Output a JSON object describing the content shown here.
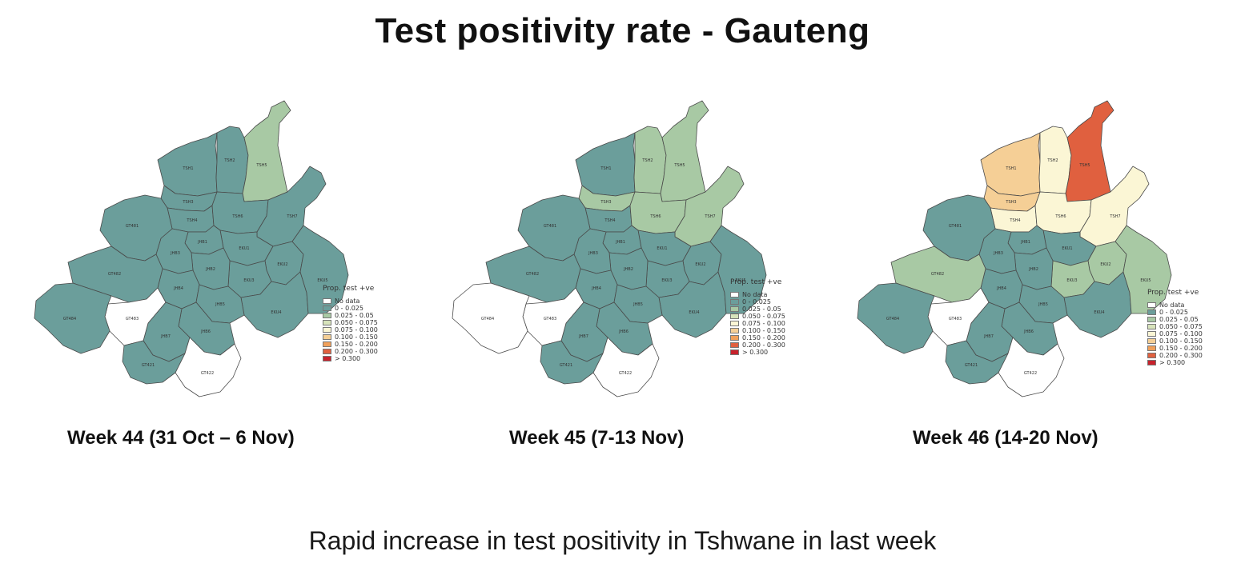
{
  "title": "Test positivity rate - Gauteng",
  "footer": "Rapid increase in test positivity in Tshwane in last week",
  "legend": {
    "title": "Prop. test +ve",
    "items": [
      {
        "label": "No data",
        "color": "#ffffff"
      },
      {
        "label": "0 - 0.025",
        "color": "#6b9e9b"
      },
      {
        "label": "0.025 - 0.05",
        "color": "#a8c9a4"
      },
      {
        "label": "0.050 - 0.075",
        "color": "#d7e3bb"
      },
      {
        "label": "0.075 - 0.100",
        "color": "#fbf6d5"
      },
      {
        "label": "0.100 - 0.150",
        "color": "#f5cf96"
      },
      {
        "label": "0.150 - 0.200",
        "color": "#f0a05a"
      },
      {
        "label": "0.200 - 0.300",
        "color": "#e0603f"
      },
      {
        "label": "> 0.300",
        "color": "#c7222c"
      }
    ]
  },
  "maps": [
    {
      "caption": "Week 44 (31 Oct – 6 Nov)",
      "labels": [
        "TSH1",
        "TSH2",
        "TSH3",
        "TSH4",
        "TSH5",
        "TSH6",
        "TSH7",
        "EKU1",
        "EKU2",
        "EKU3",
        "EKU4",
        "EKU5",
        "JHB1",
        "JHB2",
        "JHB3",
        "JHB4",
        "JHB5",
        "JHB6",
        "JHB7",
        "GT481",
        "GT482",
        "GT483",
        "GT484",
        "GT422",
        "GT421"
      ]
    },
    {
      "caption": "Week 45 (7-13 Nov)",
      "labels": [
        "TSH1",
        "TSH2",
        "TSH3",
        "TSH4",
        "TSH5",
        "TSH6",
        "TSH7",
        "EKU1",
        "EKU2",
        "EKU3",
        "EKU4",
        "EKU5",
        "JHB1",
        "JHB2",
        "JHB3",
        "JHB4",
        "JHB5",
        "JHB6",
        "JHB7",
        "GT481",
        "GT482",
        "GT483",
        "GT484",
        "GT422",
        "GT421"
      ]
    },
    {
      "caption": "Week 46 (14-20 Nov)",
      "labels": [
        "TSH1",
        "TSH2",
        "TSH3",
        "TSH4",
        "TSH5",
        "TSH6",
        "TSH7",
        "EKU1",
        "EKU2",
        "EKU3",
        "EKU4",
        "EKU5",
        "JHB1",
        "JHB2",
        "JHB3",
        "JHB4",
        "JHB5",
        "JHB6",
        "JHB7",
        "GT481",
        "GT482",
        "GT483",
        "GT484",
        "GT422",
        "GT421"
      ]
    }
  ],
  "region_colors": [
    [
      "#6b9e9b",
      "#6b9e9b",
      "#6b9e9b",
      "#6b9e9b",
      "#a8c9a4",
      "#6b9e9b",
      "#6b9e9b",
      "#6b9e9b",
      "#6b9e9b",
      "#6b9e9b",
      "#6b9e9b",
      "#6b9e9b",
      "#6b9e9b",
      "#6b9e9b",
      "#6b9e9b",
      "#6b9e9b",
      "#6b9e9b",
      "#6b9e9b",
      "#6b9e9b",
      "#6b9e9b",
      "#6b9e9b",
      "#ffffff",
      "#6b9e9b",
      "#ffffff",
      "#6b9e9b"
    ],
    [
      "#6b9e9b",
      "#a8c9a4",
      "#a8c9a4",
      "#6b9e9b",
      "#a8c9a4",
      "#a8c9a4",
      "#a8c9a4",
      "#6b9e9b",
      "#6b9e9b",
      "#6b9e9b",
      "#6b9e9b",
      "#6b9e9b",
      "#6b9e9b",
      "#6b9e9b",
      "#6b9e9b",
      "#6b9e9b",
      "#6b9e9b",
      "#6b9e9b",
      "#6b9e9b",
      "#6b9e9b",
      "#6b9e9b",
      "#ffffff",
      "#ffffff",
      "#ffffff",
      "#6b9e9b"
    ],
    [
      "#f5cf96",
      "#fbf6d5",
      "#f5cf96",
      "#fbf6d5",
      "#e0603f",
      "#fbf6d5",
      "#fbf6d5",
      "#6b9e9b",
      "#a8c9a4",
      "#a8c9a4",
      "#6b9e9b",
      "#a8c9a4",
      "#6b9e9b",
      "#6b9e9b",
      "#6b9e9b",
      "#6b9e9b",
      "#6b9e9b",
      "#6b9e9b",
      "#6b9e9b",
      "#6b9e9b",
      "#a8c9a4",
      "#ffffff",
      "#6b9e9b",
      "#ffffff",
      "#6b9e9b"
    ]
  ]
}
